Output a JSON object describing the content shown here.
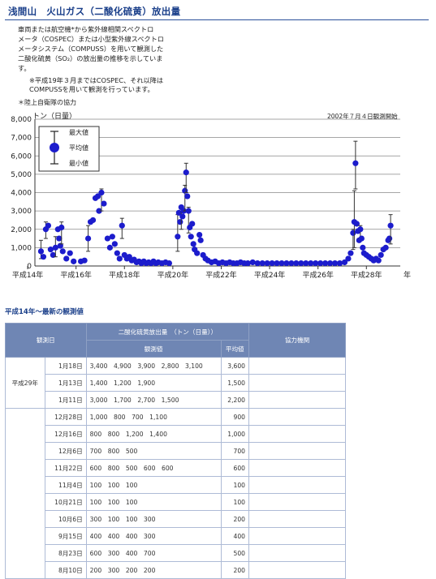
{
  "header": {
    "title": "浅間山　火山ガス（二酸化硫黄）放出量"
  },
  "intro": {
    "lines": [
      "車両または航空機*から紫外線相関スペクトロ",
      "メータ（COSPEC）または小型紫外線スペクトロ",
      "メータシステム（COMPUSS）を用いて観測した",
      "二酸化硫黄（SO₂）の放出量の推移を示していま",
      "す。"
    ],
    "note_lines": [
      "※平成19年３月まではCOSPEC、それ以降は",
      "COMPUSSを用いて観測を行っています。"
    ],
    "cooperation": "＊陸上自衛隊の協力"
  },
  "chart_data": {
    "type": "scatter",
    "ylabel": "トン（日量）",
    "xlabel_unit": "年",
    "annotation": "2002年７月４日観測開始",
    "ylim": [
      0,
      8000
    ],
    "y_ticks": [
      "0",
      "1,000",
      "2,000",
      "3,000",
      "4,000",
      "5,000",
      "6,000",
      "7,000",
      "8,000"
    ],
    "x_ticks": [
      {
        "year": 2002,
        "label": "平成14年"
      },
      {
        "year": 2004,
        "label": "平成16年"
      },
      {
        "year": 2006,
        "label": "平成18年"
      },
      {
        "year": 2008,
        "label": "平成20年"
      },
      {
        "year": 2010,
        "label": "平成22年"
      },
      {
        "year": 2012,
        "label": "平成24年"
      },
      {
        "year": 2014,
        "label": "平成26年"
      },
      {
        "year": 2016,
        "label": "平成28年"
      }
    ],
    "legend": {
      "max": "最大値",
      "mean": "平均値",
      "min": "最小値",
      "position": "top-left"
    },
    "points": [
      {
        "x": 2002.55,
        "y": 800,
        "min": 400,
        "max": 1400
      },
      {
        "x": 2002.65,
        "y": 500
      },
      {
        "x": 2002.75,
        "y": 2000,
        "min": 1500,
        "max": 2400
      },
      {
        "x": 2002.85,
        "y": 2200
      },
      {
        "x": 2002.95,
        "y": 900
      },
      {
        "x": 2003.05,
        "y": 600
      },
      {
        "x": 2003.15,
        "y": 1000,
        "min": 500,
        "max": 1600
      },
      {
        "x": 2003.25,
        "y": 2000
      },
      {
        "x": 2003.3,
        "y": 1500
      },
      {
        "x": 2003.35,
        "y": 1100
      },
      {
        "x": 2003.4,
        "y": 2100,
        "min": 1200,
        "max": 2400
      },
      {
        "x": 2003.45,
        "y": 800
      },
      {
        "x": 2003.6,
        "y": 400
      },
      {
        "x": 2003.75,
        "y": 700
      },
      {
        "x": 2003.9,
        "y": 250
      },
      {
        "x": 2004.2,
        "y": 250
      },
      {
        "x": 2004.35,
        "y": 300
      },
      {
        "x": 2004.5,
        "y": 1500,
        "min": 800,
        "max": 2200
      },
      {
        "x": 2004.6,
        "y": 2400
      },
      {
        "x": 2004.7,
        "y": 2500
      },
      {
        "x": 2004.8,
        "y": 3700
      },
      {
        "x": 2004.9,
        "y": 3800
      },
      {
        "x": 2004.95,
        "y": 3000
      },
      {
        "x": 2005.05,
        "y": 4000,
        "min": 3000,
        "max": 4200
      },
      {
        "x": 2005.15,
        "y": 3400
      },
      {
        "x": 2005.3,
        "y": 1500
      },
      {
        "x": 2005.4,
        "y": 1000
      },
      {
        "x": 2005.5,
        "y": 1600
      },
      {
        "x": 2005.6,
        "y": 1200
      },
      {
        "x": 2005.7,
        "y": 700
      },
      {
        "x": 2005.8,
        "y": 400
      },
      {
        "x": 2005.9,
        "y": 2200,
        "min": 1500,
        "max": 2600
      },
      {
        "x": 2006.0,
        "y": 600
      },
      {
        "x": 2006.1,
        "y": 400
      },
      {
        "x": 2006.2,
        "y": 500
      },
      {
        "x": 2006.3,
        "y": 300
      },
      {
        "x": 2006.4,
        "y": 350
      },
      {
        "x": 2006.5,
        "y": 200
      },
      {
        "x": 2006.6,
        "y": 250
      },
      {
        "x": 2006.7,
        "y": 150
      },
      {
        "x": 2006.8,
        "y": 250
      },
      {
        "x": 2006.9,
        "y": 150
      },
      {
        "x": 2007.0,
        "y": 200
      },
      {
        "x": 2007.1,
        "y": 150
      },
      {
        "x": 2007.2,
        "y": 250
      },
      {
        "x": 2007.3,
        "y": 150
      },
      {
        "x": 2007.4,
        "y": 200
      },
      {
        "x": 2007.55,
        "y": 150
      },
      {
        "x": 2007.7,
        "y": 200
      },
      {
        "x": 2007.85,
        "y": 150
      },
      {
        "x": 2008.2,
        "y": 1600,
        "min": 800,
        "max": 2800
      },
      {
        "x": 2008.25,
        "y": 2900
      },
      {
        "x": 2008.3,
        "y": 2400
      },
      {
        "x": 2008.35,
        "y": 3200,
        "min": 2000,
        "max": 3300
      },
      {
        "x": 2008.4,
        "y": 2700
      },
      {
        "x": 2008.45,
        "y": 3000
      },
      {
        "x": 2008.5,
        "y": 4100,
        "min": 3000,
        "max": 4400
      },
      {
        "x": 2008.55,
        "y": 5100,
        "min": 4000,
        "max": 5600
      },
      {
        "x": 2008.6,
        "y": 3800
      },
      {
        "x": 2008.65,
        "y": 3000,
        "min": 1800,
        "max": 3200
      },
      {
        "x": 2008.7,
        "y": 2100
      },
      {
        "x": 2008.75,
        "y": 1600
      },
      {
        "x": 2008.8,
        "y": 2300
      },
      {
        "x": 2008.85,
        "y": 1200
      },
      {
        "x": 2008.9,
        "y": 900
      },
      {
        "x": 2009.0,
        "y": 700
      },
      {
        "x": 2009.1,
        "y": 1700
      },
      {
        "x": 2009.15,
        "y": 1400
      },
      {
        "x": 2009.25,
        "y": 600
      },
      {
        "x": 2009.35,
        "y": 400
      },
      {
        "x": 2009.45,
        "y": 300
      },
      {
        "x": 2009.6,
        "y": 200
      },
      {
        "x": 2009.75,
        "y": 250
      },
      {
        "x": 2009.9,
        "y": 150
      },
      {
        "x": 2010.05,
        "y": 200
      },
      {
        "x": 2010.2,
        "y": 150
      },
      {
        "x": 2010.35,
        "y": 200
      },
      {
        "x": 2010.5,
        "y": 150
      },
      {
        "x": 2010.65,
        "y": 150
      },
      {
        "x": 2010.8,
        "y": 200
      },
      {
        "x": 2010.95,
        "y": 150
      },
      {
        "x": 2011.1,
        "y": 150
      },
      {
        "x": 2011.3,
        "y": 200
      },
      {
        "x": 2011.5,
        "y": 150
      },
      {
        "x": 2011.7,
        "y": 150
      },
      {
        "x": 2011.9,
        "y": 150
      },
      {
        "x": 2012.1,
        "y": 150
      },
      {
        "x": 2012.3,
        "y": 150
      },
      {
        "x": 2012.5,
        "y": 150
      },
      {
        "x": 2012.7,
        "y": 150
      },
      {
        "x": 2012.9,
        "y": 150
      },
      {
        "x": 2013.1,
        "y": 150
      },
      {
        "x": 2013.3,
        "y": 150
      },
      {
        "x": 2013.5,
        "y": 150
      },
      {
        "x": 2013.7,
        "y": 150
      },
      {
        "x": 2013.9,
        "y": 150
      },
      {
        "x": 2014.1,
        "y": 150
      },
      {
        "x": 2014.3,
        "y": 150
      },
      {
        "x": 2014.5,
        "y": 150
      },
      {
        "x": 2014.7,
        "y": 150
      },
      {
        "x": 2014.9,
        "y": 150
      },
      {
        "x": 2015.1,
        "y": 200
      },
      {
        "x": 2015.25,
        "y": 400
      },
      {
        "x": 2015.35,
        "y": 700
      },
      {
        "x": 2015.45,
        "y": 1800,
        "min": 900,
        "max": 2000
      },
      {
        "x": 2015.5,
        "y": 2400,
        "min": 1000,
        "max": 4100
      },
      {
        "x": 2015.55,
        "y": 5600,
        "min": 4200,
        "max": 6800
      },
      {
        "x": 2015.6,
        "y": 2300
      },
      {
        "x": 2015.65,
        "y": 1900
      },
      {
        "x": 2015.7,
        "y": 1400
      },
      {
        "x": 2015.75,
        "y": 2000,
        "min": 1500,
        "max": 2200
      },
      {
        "x": 2015.8,
        "y": 1500
      },
      {
        "x": 2015.85,
        "y": 1000
      },
      {
        "x": 2015.9,
        "y": 700
      },
      {
        "x": 2016.0,
        "y": 600
      },
      {
        "x": 2016.1,
        "y": 500
      },
      {
        "x": 2016.2,
        "y": 400
      },
      {
        "x": 2016.3,
        "y": 300
      },
      {
        "x": 2016.4,
        "y": 400
      },
      {
        "x": 2016.5,
        "y": 300
      },
      {
        "x": 2016.6,
        "y": 600
      },
      {
        "x": 2016.7,
        "y": 900
      },
      {
        "x": 2016.8,
        "y": 1000
      },
      {
        "x": 2016.9,
        "y": 1400
      },
      {
        "x": 2016.95,
        "y": 1500
      },
      {
        "x": 2017.0,
        "y": 2200,
        "min": 1200,
        "max": 2800
      }
    ]
  },
  "section_title": "平成14年～最新の観測値",
  "table": {
    "headers": {
      "date": "観測日",
      "so2": "二酸化硫黄放出量　（トン（日量））",
      "obs": "観測値",
      "avg": "平均値",
      "coop": "協力機関"
    },
    "group1_label": "平成29年",
    "rows": [
      {
        "date": "1月18日",
        "obs": "3,400　4,900　3,900　2,800　3,100",
        "avg": "3,600",
        "coop": ""
      },
      {
        "date": "1月13日",
        "obs": "1,400　1,200　1,900",
        "avg": "1,500",
        "coop": ""
      },
      {
        "date": "1月11日",
        "obs": "3,000　1,700　2,700　1,500",
        "avg": "2,200",
        "coop": ""
      },
      {
        "date": "12月28日",
        "obs": "1,000　800　700　1,100",
        "avg": "900",
        "coop": ""
      },
      {
        "date": "12月16日",
        "obs": "800　800　1,200　1,400",
        "avg": "1,000",
        "coop": ""
      },
      {
        "date": "12月6日",
        "obs": "700　800　500",
        "avg": "700",
        "coop": ""
      },
      {
        "date": "11月22日",
        "obs": "600　800　500　600　600",
        "avg": "600",
        "coop": ""
      },
      {
        "date": "11月4日",
        "obs": "100　100　100",
        "avg": "100",
        "coop": ""
      },
      {
        "date": "10月21日",
        "obs": "100　100　100",
        "avg": "100",
        "coop": ""
      },
      {
        "date": "10月6日",
        "obs": "300　100　100　300",
        "avg": "200",
        "coop": ""
      },
      {
        "date": "9月15日",
        "obs": "400　400　400　300",
        "avg": "400",
        "coop": ""
      },
      {
        "date": "8月23日",
        "obs": "600　300　400　700",
        "avg": "500",
        "coop": ""
      },
      {
        "date": "8月10日",
        "obs": "200　300　200　200",
        "avg": "200",
        "coop": ""
      }
    ]
  }
}
